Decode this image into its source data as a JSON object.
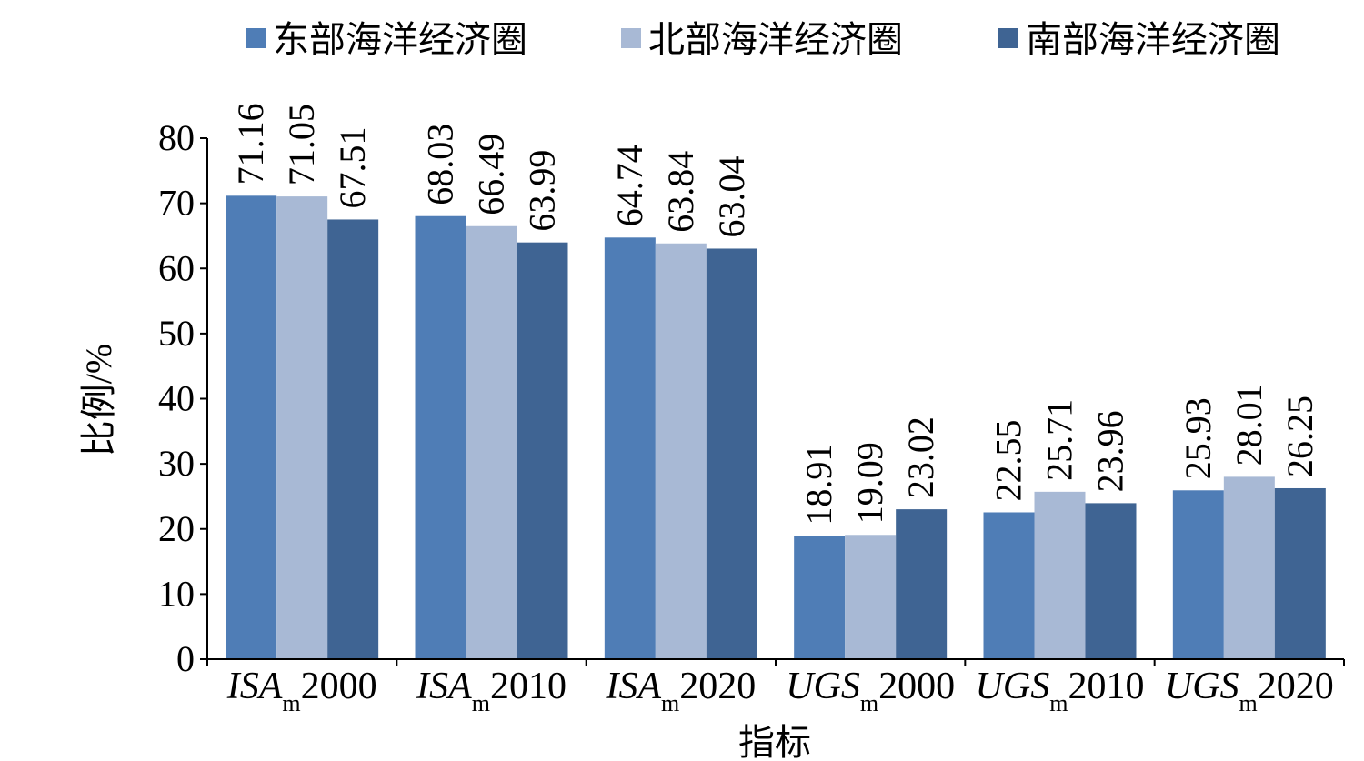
{
  "chart_data": {
    "type": "bar",
    "xlabel": "指标",
    "ylabel": "比例/%",
    "ylim": [
      0,
      80
    ],
    "yticks": [
      0,
      10,
      20,
      30,
      40,
      50,
      60,
      70,
      80
    ],
    "grid": false,
    "legend_position": "top",
    "categories": [
      {
        "main": "ISA",
        "sub": "m",
        "year": "2000"
      },
      {
        "main": "ISA",
        "sub": "m",
        "year": "2010"
      },
      {
        "main": "ISA",
        "sub": "m",
        "year": "2020"
      },
      {
        "main": "UGS",
        "sub": "m",
        "year": "2000"
      },
      {
        "main": "UGS",
        "sub": "m",
        "year": "2010"
      },
      {
        "main": "UGS",
        "sub": "m",
        "year": "2020"
      }
    ],
    "series": [
      {
        "name": "东部海洋经济圈",
        "color": "#4f7db6",
        "values": [
          71.16,
          68.03,
          64.74,
          18.91,
          22.55,
          25.93
        ]
      },
      {
        "name": "北部海洋经济圈",
        "color": "#a8b9d5",
        "values": [
          71.05,
          66.49,
          63.84,
          19.09,
          25.71,
          28.01
        ]
      },
      {
        "name": "南部海洋经济圈",
        "color": "#3f6493",
        "values": [
          67.51,
          63.99,
          63.04,
          23.02,
          23.96,
          26.25
        ]
      }
    ]
  }
}
